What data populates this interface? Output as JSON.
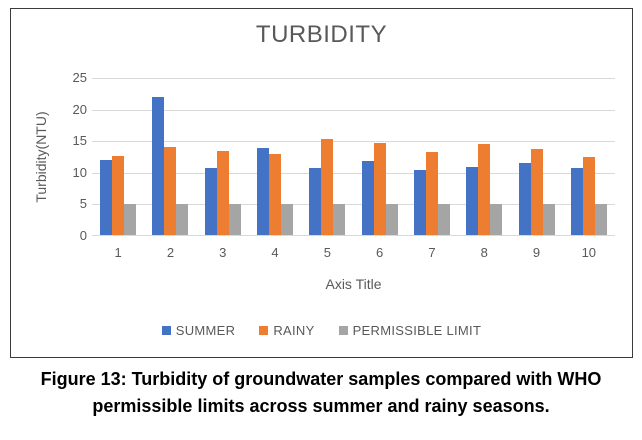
{
  "figure": {
    "caption_line1": "Figure 13: Turbidity of groundwater samples compared with WHO",
    "caption_line2": "permissible limits across summer and rainy seasons."
  },
  "chart_data": {
    "type": "bar",
    "title": "TURBIDITY",
    "xlabel": "Axis Title",
    "ylabel": "Turbidity(NTU)",
    "ylim": [
      0,
      25
    ],
    "yticks": [
      25,
      20,
      15,
      10,
      5,
      0
    ],
    "grid": true,
    "legend_position": "bottom",
    "categories": [
      "1",
      "2",
      "3",
      "4",
      "5",
      "6",
      "7",
      "8",
      "9",
      "10"
    ],
    "series": [
      {
        "name": "SUMMER",
        "color": "#4472C4",
        "values": [
          12.0,
          22.0,
          10.8,
          14.0,
          10.7,
          11.8,
          10.4,
          10.9,
          11.5,
          10.8
        ]
      },
      {
        "name": "RAINY",
        "color": "#ED7D31",
        "values": [
          12.6,
          14.1,
          13.5,
          12.9,
          15.4,
          14.7,
          13.3,
          14.5,
          13.7,
          12.5
        ]
      },
      {
        "name": "PERMISSIBLE LIMIT",
        "color": "#A5A5A5",
        "values": [
          5,
          5,
          5,
          5,
          5,
          5,
          5,
          5,
          5,
          5
        ]
      }
    ],
    "colors": {
      "gridline": "#D9D9D9",
      "axis_text": "#595959",
      "title_text": "#595959",
      "chart_border": "#3B3B3B"
    }
  }
}
